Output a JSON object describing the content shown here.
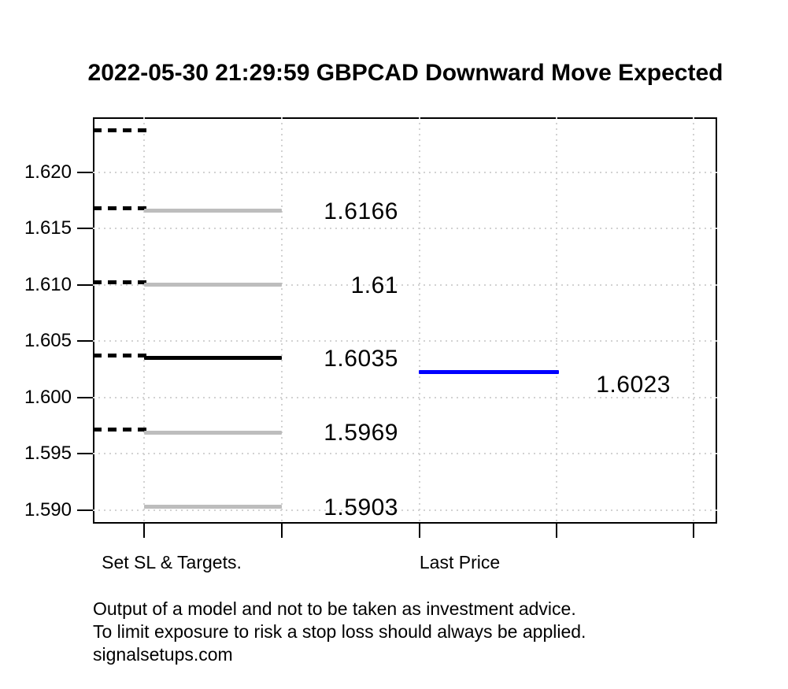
{
  "title": "2022-05-30 21:29:59 GBPCAD Downward Move Expected",
  "colors": {
    "target_line": "#bdbdbd",
    "signal_line": "#000000",
    "last_price_line": "#0000ff",
    "dashed_marker": "#000000",
    "grid": "#d2d2d2",
    "axis": "#000000",
    "text": "#000000",
    "background": "#ffffff"
  },
  "chart_data": {
    "type": "line",
    "title": "2022-05-30 21:29:59 GBPCAD Downward Move Expected",
    "xlabel": "",
    "ylabel": "",
    "ylim": [
      1.5888,
      1.6249
    ],
    "grid": "dotted",
    "legend": "none",
    "y_ticks": [
      "1.620",
      "1.615",
      "1.610",
      "1.605",
      "1.600",
      "1.595",
      "1.590"
    ],
    "y_tick_values": [
      1.62,
      1.615,
      1.61,
      1.605,
      1.6,
      1.595,
      1.59
    ],
    "x_tick_labels": [
      "Set SL & Targets.",
      "Last Price"
    ],
    "levels": [
      {
        "value": 1.6235,
        "label": "",
        "line": "none",
        "dashed_marker": true,
        "color": "#000000",
        "role": "unlabeled-dashed-level"
      },
      {
        "value": 1.6166,
        "label": "1.6166",
        "line": "solid",
        "dashed_marker": true,
        "color": "#bdbdbd",
        "role": "target"
      },
      {
        "value": 1.61,
        "label": "1.61",
        "line": "solid",
        "dashed_marker": true,
        "color": "#bdbdbd",
        "role": "target"
      },
      {
        "value": 1.6035,
        "label": "1.6035",
        "line": "solid",
        "dashed_marker": true,
        "color": "#000000",
        "role": "signal"
      },
      {
        "value": 1.5969,
        "label": "1.5969",
        "line": "solid",
        "dashed_marker": true,
        "color": "#bdbdbd",
        "role": "target"
      },
      {
        "value": 1.5903,
        "label": "1.5903",
        "line": "solid",
        "dashed_marker": false,
        "color": "#bdbdbd",
        "role": "target"
      }
    ],
    "last_price": {
      "value": 1.6023,
      "label": "1.6023",
      "color": "#0000ff"
    }
  },
  "footer_lines": [
    "Output of a model and not to be taken as investment advice.",
    "To limit exposure to risk a stop loss should always be applied.",
    "signalsetups.com"
  ]
}
